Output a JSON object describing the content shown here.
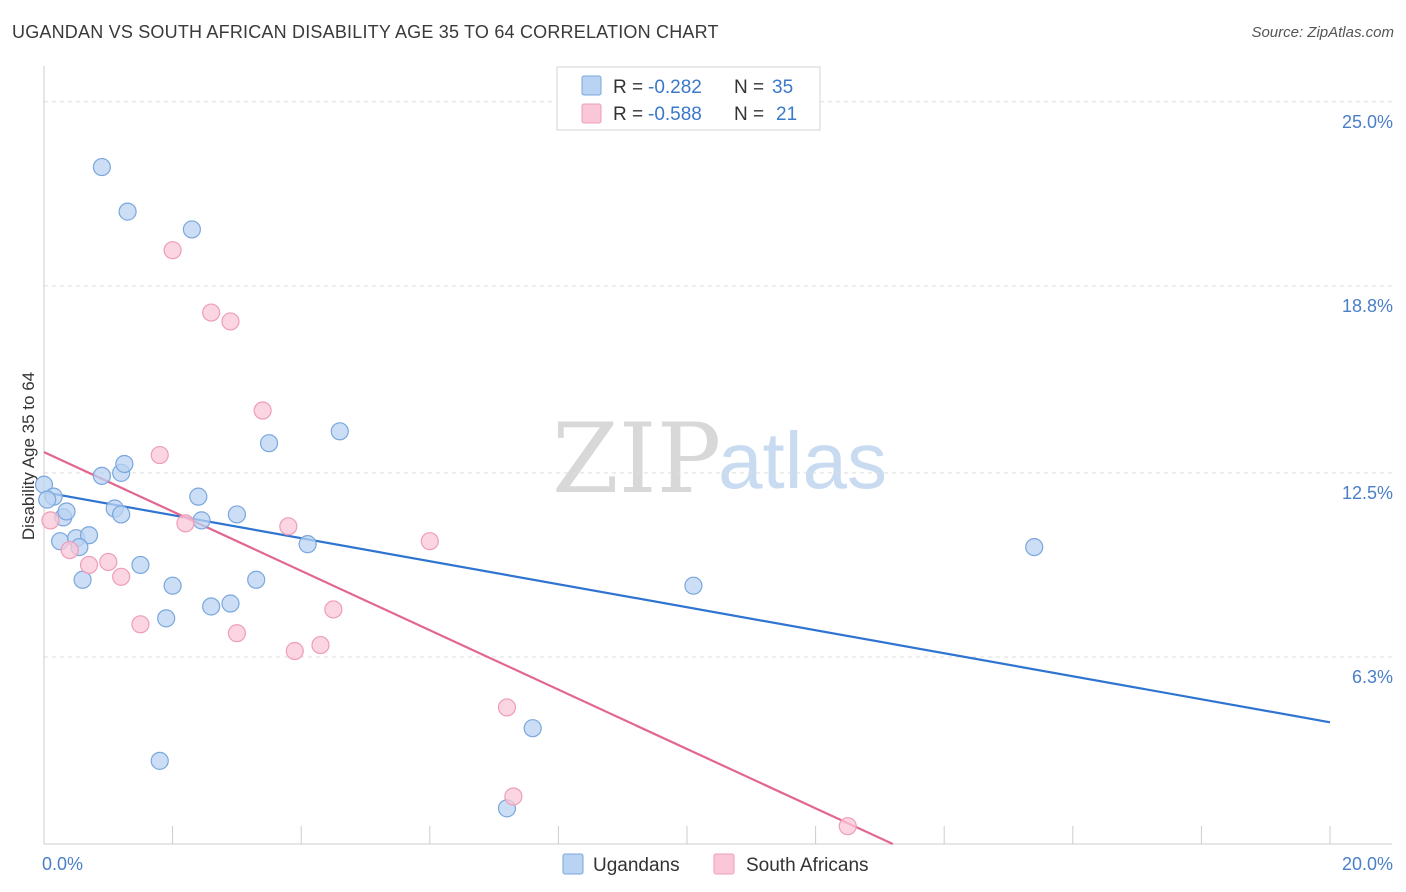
{
  "title": "UGANDAN VS SOUTH AFRICAN DISABILITY AGE 35 TO 64 CORRELATION CHART",
  "source": "Source: ZipAtlas.com",
  "watermark": {
    "zip": "ZIP",
    "atlas": "atlas"
  },
  "colors": {
    "blue_fill": "#b9d3f2",
    "blue_stroke": "#7aa7dd",
    "blue_line": "#2f74d0",
    "pink_fill": "#f9c7d7",
    "pink_stroke": "#ee9db8",
    "pink_line": "#e2668f",
    "grid": "#dddddd",
    "tick_label": "#4a7fc8"
  },
  "legend": {
    "r_label": "R =",
    "n_label": "N =",
    "rows": [
      {
        "r": "-0.282",
        "n": "35"
      },
      {
        "r": "-0.588",
        "n": "21"
      }
    ]
  },
  "chart_data": {
    "type": "scatter",
    "xlabel": "",
    "ylabel": "Disability Age 35 to 64",
    "xlim": [
      0,
      20
    ],
    "ylim": [
      0,
      25.8
    ],
    "x_tick_labels": [
      "0.0%",
      "20.0%"
    ],
    "y_ticks": [
      6.3,
      12.5,
      18.8,
      25.0
    ],
    "y_tick_labels": [
      "6.3%",
      "12.5%",
      "18.8%",
      "25.0%"
    ],
    "series": [
      {
        "name": "Ugandans",
        "color": "blue",
        "points": [
          [
            0.0,
            12.1
          ],
          [
            0.15,
            11.7
          ],
          [
            0.3,
            11.0
          ],
          [
            0.35,
            11.2
          ],
          [
            0.25,
            10.2
          ],
          [
            0.5,
            10.3
          ],
          [
            0.7,
            10.4
          ],
          [
            0.55,
            10.0
          ],
          [
            0.6,
            8.9
          ],
          [
            0.9,
            12.4
          ],
          [
            1.2,
            12.5
          ],
          [
            1.25,
            12.8
          ],
          [
            1.1,
            11.3
          ],
          [
            1.5,
            9.4
          ],
          [
            1.2,
            11.1
          ],
          [
            1.9,
            7.6
          ],
          [
            2.0,
            8.7
          ],
          [
            2.4,
            11.7
          ],
          [
            2.45,
            10.9
          ],
          [
            2.6,
            8.0
          ],
          [
            2.9,
            8.1
          ],
          [
            3.0,
            11.1
          ],
          [
            3.3,
            8.9
          ],
          [
            3.5,
            13.5
          ],
          [
            4.1,
            10.1
          ],
          [
            4.6,
            13.9
          ],
          [
            1.8,
            2.8
          ],
          [
            0.9,
            22.8
          ],
          [
            1.3,
            21.3
          ],
          [
            2.3,
            20.7
          ],
          [
            7.6,
            3.9
          ],
          [
            7.2,
            1.2
          ],
          [
            10.1,
            8.7
          ],
          [
            15.4,
            10.0
          ],
          [
            0.05,
            11.6
          ]
        ],
        "trend": {
          "x": [
            0.0,
            20.0
          ],
          "y": [
            11.85,
            4.1
          ]
        }
      },
      {
        "name": "South Africans",
        "color": "pink",
        "points": [
          [
            0.1,
            10.9
          ],
          [
            0.4,
            9.9
          ],
          [
            0.7,
            9.4
          ],
          [
            1.0,
            9.5
          ],
          [
            1.2,
            9.0
          ],
          [
            1.5,
            7.4
          ],
          [
            1.8,
            13.1
          ],
          [
            2.0,
            20.0
          ],
          [
            2.2,
            10.8
          ],
          [
            2.6,
            17.9
          ],
          [
            2.9,
            17.6
          ],
          [
            3.0,
            7.1
          ],
          [
            3.4,
            14.6
          ],
          [
            3.8,
            10.7
          ],
          [
            3.9,
            6.5
          ],
          [
            4.3,
            6.7
          ],
          [
            4.5,
            7.9
          ],
          [
            6.0,
            10.2
          ],
          [
            7.2,
            4.6
          ],
          [
            7.3,
            1.6
          ],
          [
            12.5,
            0.6
          ]
        ],
        "trend": {
          "x": [
            0.0,
            13.2
          ],
          "y": [
            13.2,
            0.0
          ]
        }
      }
    ],
    "legend_position": "top-center",
    "bottom_legend": [
      "Ugandans",
      "South Africans"
    ]
  }
}
